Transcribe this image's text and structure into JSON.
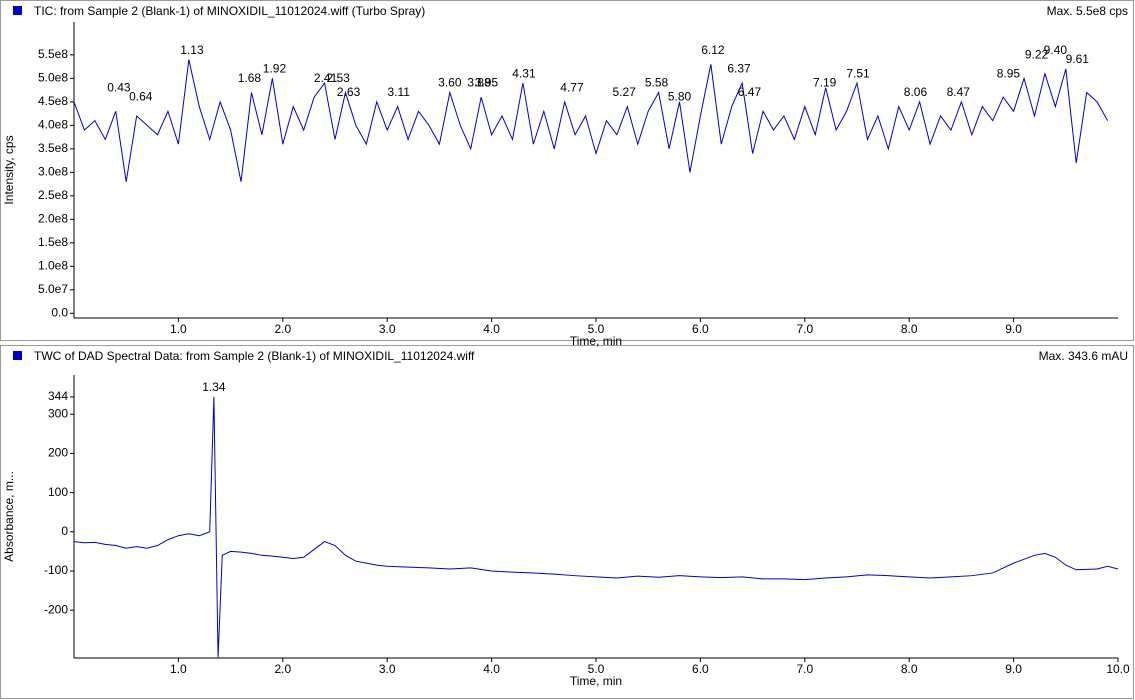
{
  "chart_data": [
    {
      "type": "line",
      "title": "TIC: from Sample 2 (Blank-1) of MINOXIDIL_11012024.wiff (Turbo Spray)",
      "max_label": "Max. 5.5e8 cps",
      "xlabel": "Time, min",
      "ylabel": "Intensity, cps",
      "color": "#0000cc",
      "xlim": [
        0,
        10
      ],
      "ylim": [
        -10000000.0,
        620000000.0
      ],
      "xticks": [
        {
          "value": 1,
          "label": "1.0"
        },
        {
          "value": 2,
          "label": "2.0"
        },
        {
          "value": 3,
          "label": "3.0"
        },
        {
          "value": 4,
          "label": "4.0"
        },
        {
          "value": 5,
          "label": "5.0"
        },
        {
          "value": 6,
          "label": "6.0"
        },
        {
          "value": 7,
          "label": "7.0"
        },
        {
          "value": 8,
          "label": "8.0"
        },
        {
          "value": 9,
          "label": "9.0"
        }
      ],
      "yticks": [
        {
          "value": 0,
          "label": "0.0"
        },
        {
          "value": 50000000.0,
          "label": "5.0e7"
        },
        {
          "value": 100000000.0,
          "label": "1.0e8"
        },
        {
          "value": 150000000.0,
          "label": "1.5e8"
        },
        {
          "value": 200000000.0,
          "label": "2.0e8"
        },
        {
          "value": 250000000.0,
          "label": "2.5e8"
        },
        {
          "value": 300000000.0,
          "label": "3.0e8"
        },
        {
          "value": 350000000.0,
          "label": "3.5e8"
        },
        {
          "value": 400000000.0,
          "label": "4.0e8"
        },
        {
          "value": 450000000.0,
          "label": "4.5e8"
        },
        {
          "value": 500000000.0,
          "label": "5.0e8"
        },
        {
          "value": 550000000.0,
          "label": "5.5e8"
        }
      ],
      "x": [
        0.0,
        0.1,
        0.2,
        0.3,
        0.4,
        0.5,
        0.6,
        0.7,
        0.8,
        0.9,
        1.0,
        1.1,
        1.2,
        1.3,
        1.4,
        1.5,
        1.6,
        1.7,
        1.8,
        1.9,
        2.0,
        2.1,
        2.2,
        2.3,
        2.4,
        2.5,
        2.6,
        2.7,
        2.8,
        2.9,
        3.0,
        3.1,
        3.2,
        3.3,
        3.4,
        3.5,
        3.6,
        3.7,
        3.8,
        3.9,
        4.0,
        4.1,
        4.2,
        4.3,
        4.4,
        4.5,
        4.6,
        4.7,
        4.8,
        4.9,
        5.0,
        5.1,
        5.2,
        5.3,
        5.4,
        5.5,
        5.6,
        5.7,
        5.8,
        5.9,
        6.0,
        6.1,
        6.2,
        6.3,
        6.4,
        6.5,
        6.6,
        6.7,
        6.8,
        6.9,
        7.0,
        7.1,
        7.2,
        7.3,
        7.4,
        7.5,
        7.6,
        7.7,
        7.8,
        7.9,
        8.0,
        8.1,
        8.2,
        8.3,
        8.4,
        8.5,
        8.6,
        8.7,
        8.8,
        8.9,
        9.0,
        9.1,
        9.2,
        9.3,
        9.4,
        9.5,
        9.6,
        9.7,
        9.8,
        9.9
      ],
      "values": [
        450000000.0,
        390000000.0,
        410000000.0,
        370000000.0,
        430000000.0,
        280000000.0,
        420000000.0,
        400000000.0,
        380000000.0,
        430000000.0,
        360000000.0,
        540000000.0,
        440000000.0,
        370000000.0,
        450000000.0,
        390000000.0,
        280000000.0,
        470000000.0,
        380000000.0,
        500000000.0,
        360000000.0,
        440000000.0,
        390000000.0,
        460000000.0,
        490000000.0,
        370000000.0,
        470000000.0,
        400000000.0,
        360000000.0,
        450000000.0,
        390000000.0,
        440000000.0,
        370000000.0,
        430000000.0,
        400000000.0,
        360000000.0,
        470000000.0,
        400000000.0,
        350000000.0,
        460000000.0,
        380000000.0,
        420000000.0,
        370000000.0,
        490000000.0,
        360000000.0,
        430000000.0,
        350000000.0,
        450000000.0,
        380000000.0,
        420000000.0,
        340000000.0,
        410000000.0,
        380000000.0,
        440000000.0,
        360000000.0,
        430000000.0,
        470000000.0,
        350000000.0,
        450000000.0,
        300000000.0,
        420000000.0,
        530000000.0,
        360000000.0,
        440000000.0,
        490000000.0,
        340000000.0,
        430000000.0,
        390000000.0,
        420000000.0,
        370000000.0,
        440000000.0,
        380000000.0,
        480000000.0,
        390000000.0,
        430000000.0,
        490000000.0,
        370000000.0,
        420000000.0,
        350000000.0,
        440000000.0,
        390000000.0,
        450000000.0,
        360000000.0,
        420000000.0,
        390000000.0,
        450000000.0,
        380000000.0,
        440000000.0,
        410000000.0,
        460000000.0,
        430000000.0,
        500000000.0,
        420000000.0,
        510000000.0,
        440000000.0,
        520000000.0,
        320000000.0,
        470000000.0,
        450000000.0,
        410000000.0
      ],
      "annotations": {
        "x": [
          0.43,
          0.64,
          1.13,
          1.68,
          1.92,
          2.41,
          2.53,
          2.63,
          3.11,
          3.6,
          3.88,
          3.95,
          4.31,
          4.77,
          5.27,
          5.58,
          5.8,
          6.12,
          6.37,
          6.47,
          7.19,
          7.51,
          8.06,
          8.47,
          8.95,
          9.22,
          9.4,
          9.61
        ],
        "y": [
          460000000.0,
          440000000.0,
          540000000.0,
          480000000.0,
          500000000.0,
          480000000.0,
          480000000.0,
          450000000.0,
          450000000.0,
          470000000.0,
          470000000.0,
          470000000.0,
          490000000.0,
          460000000.0,
          450000000.0,
          470000000.0,
          440000000.0,
          540000000.0,
          500000000.0,
          450000000.0,
          470000000.0,
          490000000.0,
          450000000.0,
          450000000.0,
          490000000.0,
          530000000.0,
          540000000.0,
          520000000.0
        ],
        "value_labels": [
          "0.43",
          "0.64",
          "1.13",
          "1.68",
          "1.92",
          "2.41",
          "2.53",
          "2.63",
          "3.11",
          "3.60",
          "3.88",
          "3.95",
          "4.31",
          "4.77",
          "5.27",
          "5.58",
          "5.80",
          "6.12",
          "6.37",
          "6.47",
          "7.19",
          "7.51",
          "8.06",
          "8.47",
          "8.95",
          "9.22",
          "9.40",
          "9.61"
        ]
      }
    },
    {
      "type": "line",
      "title": "TWC of DAD Spectral Data: from Sample 2 (Blank-1) of MINOXIDIL_11012024.wiff",
      "max_label": "Max. 343.6 mAU",
      "xlabel": "Time, min",
      "ylabel": "Absorbance, m...",
      "color": "#0000cc",
      "xlim": [
        0,
        10
      ],
      "ylim": [
        -322,
        400
      ],
      "xticks": [
        {
          "value": 1,
          "label": "1.0"
        },
        {
          "value": 2,
          "label": "2.0"
        },
        {
          "value": 3,
          "label": "3.0"
        },
        {
          "value": 4,
          "label": "4.0"
        },
        {
          "value": 5,
          "label": "5.0"
        },
        {
          "value": 6,
          "label": "6.0"
        },
        {
          "value": 7,
          "label": "7.0"
        },
        {
          "value": 8,
          "label": "8.0"
        },
        {
          "value": 9,
          "label": "9.0"
        },
        {
          "value": 10,
          "label": "10.0"
        }
      ],
      "yticks": [
        -200,
        -100,
        0,
        100,
        200,
        300,
        344
      ],
      "x": [
        0.0,
        0.1,
        0.2,
        0.3,
        0.4,
        0.5,
        0.6,
        0.7,
        0.8,
        0.9,
        1.0,
        1.1,
        1.2,
        1.25,
        1.3,
        1.34,
        1.38,
        1.42,
        1.5,
        1.6,
        1.7,
        1.8,
        1.9,
        2.0,
        2.1,
        2.2,
        2.3,
        2.4,
        2.5,
        2.6,
        2.7,
        2.8,
        2.9,
        3.0,
        3.2,
        3.4,
        3.6,
        3.8,
        4.0,
        4.2,
        4.4,
        4.6,
        4.8,
        5.0,
        5.2,
        5.4,
        5.6,
        5.8,
        6.0,
        6.2,
        6.4,
        6.6,
        6.8,
        7.0,
        7.2,
        7.4,
        7.6,
        7.8,
        8.0,
        8.2,
        8.4,
        8.6,
        8.8,
        9.0,
        9.2,
        9.3,
        9.4,
        9.5,
        9.6,
        9.8,
        9.9,
        10.0
      ],
      "values": [
        -25,
        -28,
        -27,
        -32,
        -35,
        -42,
        -38,
        -42,
        -35,
        -20,
        -10,
        -5,
        -10,
        -5,
        0,
        344,
        -320,
        -60,
        -50,
        -52,
        -55,
        -60,
        -62,
        -65,
        -68,
        -65,
        -45,
        -25,
        -35,
        -60,
        -75,
        -80,
        -85,
        -88,
        -90,
        -92,
        -95,
        -92,
        -100,
        -103,
        -105,
        -108,
        -112,
        -115,
        -118,
        -113,
        -116,
        -112,
        -115,
        -117,
        -115,
        -120,
        -120,
        -122,
        -118,
        -115,
        -110,
        -112,
        -115,
        -118,
        -115,
        -112,
        -105,
        -80,
        -60,
        -55,
        -65,
        -85,
        -97,
        -95,
        -88,
        -95
      ],
      "annotations": {
        "x": [
          1.34
        ],
        "y": [
          344
        ],
        "value_labels": [
          "1.34"
        ]
      }
    }
  ]
}
